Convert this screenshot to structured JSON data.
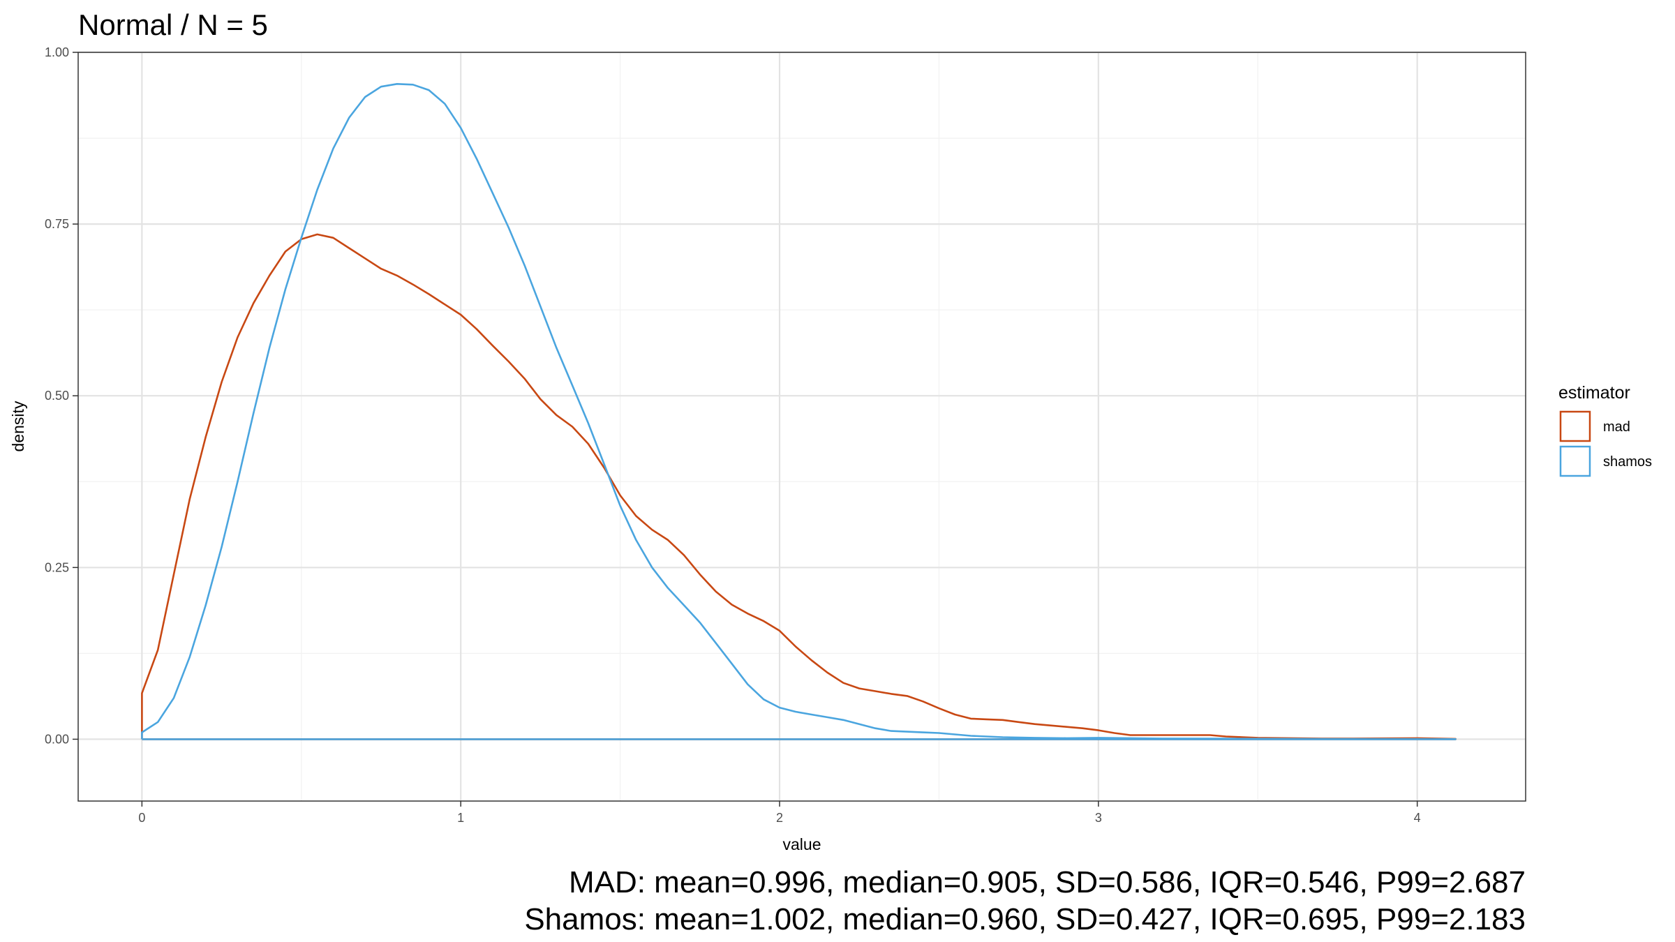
{
  "chart_data": {
    "type": "line",
    "title": "Normal / N = 5",
    "xlabel": "value",
    "ylabel": "density",
    "xlim": [
      -0.2,
      4.34
    ],
    "ylim": [
      -0.09,
      1.0
    ],
    "x_ticks": [
      0,
      1,
      2,
      3,
      4
    ],
    "x_tick_labels": [
      "0",
      "1",
      "2",
      "3",
      "4"
    ],
    "y_ticks": [
      0,
      0.25,
      0.5,
      0.75,
      1.0
    ],
    "y_tick_labels": [
      "0.00",
      "0.25",
      "0.50",
      "0.75",
      "1.00"
    ],
    "grid": true,
    "legend": {
      "title": "estimator",
      "position": "right"
    },
    "series": [
      {
        "name": "mad",
        "color": "#c84813",
        "points": [
          [
            0.0,
            0.0
          ],
          [
            0.0,
            0.067
          ],
          [
            0.05,
            0.13
          ],
          [
            0.1,
            0.24
          ],
          [
            0.15,
            0.35
          ],
          [
            0.2,
            0.44
          ],
          [
            0.25,
            0.52
          ],
          [
            0.3,
            0.585
          ],
          [
            0.35,
            0.635
          ],
          [
            0.4,
            0.675
          ],
          [
            0.45,
            0.71
          ],
          [
            0.5,
            0.728
          ],
          [
            0.55,
            0.735
          ],
          [
            0.6,
            0.73
          ],
          [
            0.65,
            0.715
          ],
          [
            0.7,
            0.7
          ],
          [
            0.75,
            0.685
          ],
          [
            0.8,
            0.675
          ],
          [
            0.85,
            0.662
          ],
          [
            0.9,
            0.648
          ],
          [
            0.95,
            0.633
          ],
          [
            1.0,
            0.618
          ],
          [
            1.05,
            0.597
          ],
          [
            1.1,
            0.573
          ],
          [
            1.15,
            0.55
          ],
          [
            1.2,
            0.525
          ],
          [
            1.25,
            0.495
          ],
          [
            1.3,
            0.472
          ],
          [
            1.35,
            0.455
          ],
          [
            1.4,
            0.43
          ],
          [
            1.45,
            0.395
          ],
          [
            1.5,
            0.355
          ],
          [
            1.55,
            0.325
          ],
          [
            1.6,
            0.305
          ],
          [
            1.65,
            0.29
          ],
          [
            1.7,
            0.268
          ],
          [
            1.75,
            0.24
          ],
          [
            1.8,
            0.215
          ],
          [
            1.85,
            0.196
          ],
          [
            1.9,
            0.183
          ],
          [
            1.95,
            0.172
          ],
          [
            2.0,
            0.158
          ],
          [
            2.05,
            0.135
          ],
          [
            2.1,
            0.115
          ],
          [
            2.15,
            0.097
          ],
          [
            2.2,
            0.082
          ],
          [
            2.25,
            0.074
          ],
          [
            2.3,
            0.07
          ],
          [
            2.35,
            0.066
          ],
          [
            2.4,
            0.063
          ],
          [
            2.45,
            0.055
          ],
          [
            2.5,
            0.045
          ],
          [
            2.55,
            0.036
          ],
          [
            2.6,
            0.03
          ],
          [
            2.65,
            0.029
          ],
          [
            2.7,
            0.028
          ],
          [
            2.75,
            0.025
          ],
          [
            2.8,
            0.022
          ],
          [
            2.85,
            0.02
          ],
          [
            2.9,
            0.018
          ],
          [
            2.95,
            0.016
          ],
          [
            3.0,
            0.013
          ],
          [
            3.05,
            0.009
          ],
          [
            3.1,
            0.006
          ],
          [
            3.2,
            0.006
          ],
          [
            3.3,
            0.006
          ],
          [
            3.35,
            0.006
          ],
          [
            3.4,
            0.004
          ],
          [
            3.5,
            0.002
          ],
          [
            3.6,
            0.0015
          ],
          [
            3.7,
            0.001
          ],
          [
            3.8,
            0.001
          ],
          [
            3.9,
            0.0012
          ],
          [
            4.0,
            0.0015
          ],
          [
            4.12,
            0.0005
          ],
          [
            4.12,
            0.0
          ],
          [
            0.0,
            0.0
          ]
        ]
      },
      {
        "name": "shamos",
        "color": "#4aa5df",
        "points": [
          [
            0.0,
            0.0
          ],
          [
            0.0,
            0.01
          ],
          [
            0.05,
            0.025
          ],
          [
            0.1,
            0.06
          ],
          [
            0.15,
            0.12
          ],
          [
            0.2,
            0.195
          ],
          [
            0.25,
            0.28
          ],
          [
            0.3,
            0.375
          ],
          [
            0.35,
            0.475
          ],
          [
            0.4,
            0.57
          ],
          [
            0.45,
            0.655
          ],
          [
            0.5,
            0.73
          ],
          [
            0.55,
            0.8
          ],
          [
            0.6,
            0.86
          ],
          [
            0.65,
            0.905
          ],
          [
            0.7,
            0.935
          ],
          [
            0.75,
            0.95
          ],
          [
            0.8,
            0.954
          ],
          [
            0.85,
            0.953
          ],
          [
            0.9,
            0.945
          ],
          [
            0.95,
            0.925
          ],
          [
            1.0,
            0.89
          ],
          [
            1.05,
            0.845
          ],
          [
            1.1,
            0.795
          ],
          [
            1.15,
            0.745
          ],
          [
            1.2,
            0.69
          ],
          [
            1.25,
            0.63
          ],
          [
            1.3,
            0.57
          ],
          [
            1.35,
            0.515
          ],
          [
            1.4,
            0.46
          ],
          [
            1.45,
            0.4
          ],
          [
            1.5,
            0.34
          ],
          [
            1.55,
            0.29
          ],
          [
            1.6,
            0.25
          ],
          [
            1.65,
            0.22
          ],
          [
            1.7,
            0.195
          ],
          [
            1.75,
            0.17
          ],
          [
            1.8,
            0.14
          ],
          [
            1.85,
            0.11
          ],
          [
            1.9,
            0.08
          ],
          [
            1.95,
            0.058
          ],
          [
            2.0,
            0.046
          ],
          [
            2.05,
            0.04
          ],
          [
            2.1,
            0.036
          ],
          [
            2.15,
            0.032
          ],
          [
            2.2,
            0.028
          ],
          [
            2.25,
            0.022
          ],
          [
            2.3,
            0.016
          ],
          [
            2.35,
            0.012
          ],
          [
            2.4,
            0.011
          ],
          [
            2.45,
            0.01
          ],
          [
            2.5,
            0.009
          ],
          [
            2.55,
            0.007
          ],
          [
            2.6,
            0.005
          ],
          [
            2.7,
            0.003
          ],
          [
            2.8,
            0.002
          ],
          [
            2.9,
            0.0015
          ],
          [
            3.0,
            0.002
          ],
          [
            3.1,
            0.0015
          ],
          [
            3.2,
            0.001
          ],
          [
            3.4,
            0.0008
          ],
          [
            3.6,
            0.0005
          ],
          [
            3.8,
            0.0003
          ],
          [
            4.0,
            0.0002
          ],
          [
            4.12,
            0.0001
          ],
          [
            4.12,
            0.0
          ],
          [
            0.0,
            0.0
          ]
        ]
      }
    ]
  },
  "caption": [
    "MAD: mean=0.996, median=0.905, SD=0.586, IQR=0.546, P99=2.687",
    "Shamos: mean=1.002, median=0.960, SD=0.427, IQR=0.695, P99=2.183"
  ]
}
